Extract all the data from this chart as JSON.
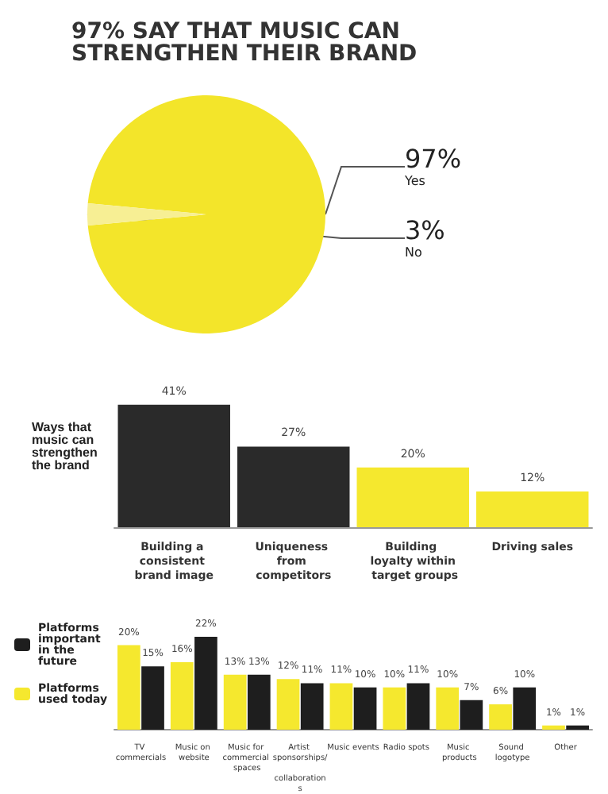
{
  "chart_data": [
    {
      "type": "pie",
      "title": "97% SAY THAT MUSIC CAN STRENGTHEN THEIR BRAND",
      "categories": [
        "Yes",
        "No"
      ],
      "values": [
        97,
        3
      ],
      "colors": [
        "#f3e52a",
        "#f7ef94"
      ],
      "value_labels": [
        "97%",
        "3%"
      ],
      "legend": false
    },
    {
      "type": "bar",
      "categories": [
        "Building a consistent brand image",
        "Uniqueness from competitors",
        "Building loyalty within target groups",
        "Driving sales"
      ],
      "values": [
        41,
        27,
        20,
        12
      ],
      "colors": [
        "#2a2a2a",
        "#2a2a2a",
        "#f5e82e",
        "#f5e82e"
      ],
      "value_labels": [
        "41%",
        "27%",
        "20%",
        "12%"
      ],
      "annotations": [
        "Ways that music can strengthen the brand"
      ]
    },
    {
      "type": "bar",
      "categories": [
        "TV commercials",
        "Music on website",
        "Music for commercial spaces",
        "Artist sponsorships/ collaborations",
        "Music events",
        "Radio spots",
        "Music products",
        "Sound logotype",
        "Other"
      ],
      "series": [
        {
          "name": "Platforms used today",
          "color": "#f5e82e",
          "values": [
            20,
            16,
            13,
            12,
            11,
            10,
            10,
            6,
            1
          ],
          "value_labels": [
            "20%",
            "16%",
            "13%",
            "12%",
            "11%",
            "10%",
            "10%",
            "6%",
            "1%"
          ]
        },
        {
          "name": "Platforms important in the future",
          "color": "#1e1e1e",
          "values": [
            15,
            22,
            13,
            11,
            10,
            11,
            7,
            10,
            1
          ],
          "value_labels": [
            "15%",
            "22%",
            "13%",
            "11%",
            "10%",
            "11%",
            "7%",
            "10%",
            "1%"
          ]
        }
      ],
      "legend": "left"
    }
  ]
}
